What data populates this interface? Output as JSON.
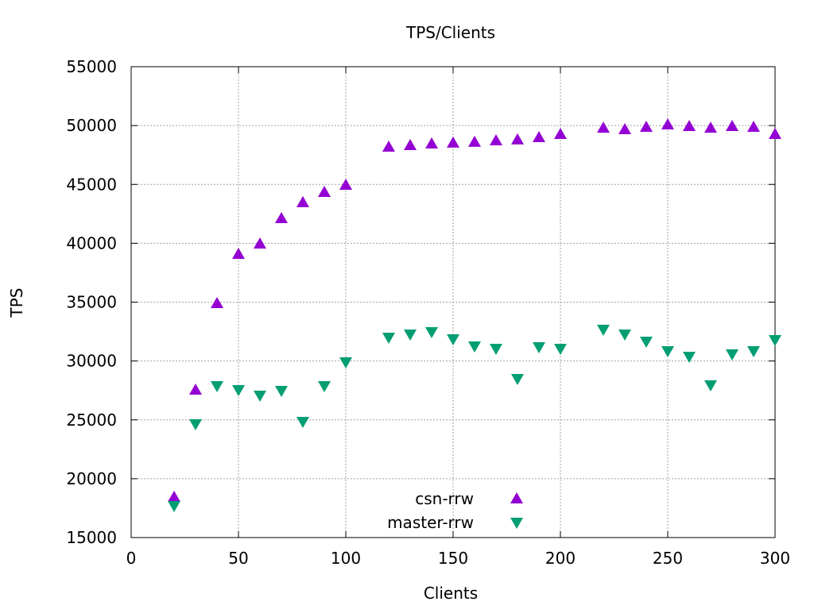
{
  "chart_data": {
    "type": "scatter",
    "title": "TPS/Clients",
    "xlabel": "Clients",
    "ylabel": "TPS",
    "xlim": [
      0,
      300
    ],
    "ylim": [
      15000,
      55000
    ],
    "xticks": [
      0,
      50,
      100,
      150,
      200,
      250,
      300
    ],
    "yticks": [
      15000,
      20000,
      25000,
      30000,
      35000,
      40000,
      45000,
      50000,
      55000
    ],
    "grid": true,
    "legend_position": "bottom-center",
    "series": [
      {
        "name": "csn-rrw",
        "color": "#9400d3",
        "marker": "triangle-up",
        "x": [
          20,
          30,
          40,
          50,
          60,
          70,
          80,
          90,
          100,
          120,
          130,
          140,
          150,
          160,
          170,
          180,
          190,
          200,
          220,
          230,
          240,
          250,
          260,
          270,
          280,
          290,
          300
        ],
        "y": [
          18440,
          27550,
          34900,
          39080,
          39960,
          42120,
          43470,
          44340,
          44950,
          48190,
          48320,
          48460,
          48530,
          48600,
          48730,
          48800,
          49000,
          49270,
          49800,
          49670,
          49870,
          50080,
          49940,
          49800,
          49940,
          49870,
          49270
        ]
      },
      {
        "name": "master-rrw",
        "color": "#009e73",
        "marker": "triangle-down",
        "x": [
          20,
          30,
          40,
          50,
          60,
          70,
          80,
          90,
          100,
          120,
          130,
          140,
          150,
          160,
          170,
          180,
          190,
          200,
          220,
          230,
          240,
          250,
          260,
          270,
          280,
          290,
          300
        ],
        "y": [
          17700,
          24650,
          27880,
          27550,
          27070,
          27480,
          24850,
          27880,
          29910,
          32000,
          32270,
          32470,
          31860,
          31260,
          31050,
          28490,
          31190,
          31050,
          32670,
          32270,
          31660,
          30850,
          30380,
          27950,
          30580,
          30850,
          31800
        ]
      }
    ]
  }
}
